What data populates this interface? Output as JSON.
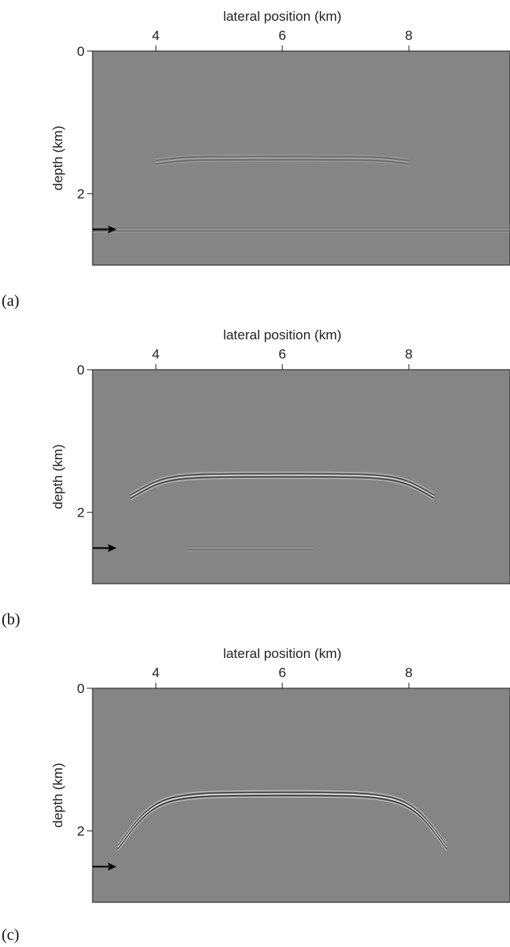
{
  "chart_data": [
    {
      "type": "heatmap",
      "panel_label": "(a)",
      "xlabel": "lateral position (km)",
      "ylabel": "depth (km)",
      "xticks": [
        4,
        6,
        8
      ],
      "yticks": [
        0,
        2
      ],
      "xlim": [
        3,
        9.6
      ],
      "ylim": [
        0,
        3
      ],
      "arrow_depth_km": 2.5,
      "reflectors": [
        {
          "x_start": 4.0,
          "x_end": 8.0,
          "depth": 1.5,
          "curvature": 0.02,
          "strength": 0.35
        },
        {
          "x_start": 3.0,
          "x_end": 9.6,
          "depth": 2.5,
          "curvature": 0.0,
          "strength": 0.2
        }
      ]
    },
    {
      "type": "heatmap",
      "panel_label": "(b)",
      "xlabel": "lateral position (km)",
      "ylabel": "depth (km)",
      "xticks": [
        4,
        6,
        8
      ],
      "yticks": [
        0,
        2
      ],
      "xlim": [
        3,
        9.6
      ],
      "ylim": [
        0,
        3
      ],
      "arrow_depth_km": 2.5,
      "reflectors": [
        {
          "x_start": 3.6,
          "x_end": 8.4,
          "depth": 1.48,
          "curvature": 0.1,
          "strength": 0.85
        },
        {
          "x_start": 4.5,
          "x_end": 6.5,
          "depth": 2.5,
          "curvature": 0.0,
          "strength": 0.12
        }
      ]
    },
    {
      "type": "heatmap",
      "panel_label": "(c)",
      "xlabel": "lateral position (km)",
      "ylabel": "depth (km)",
      "xticks": [
        4,
        6,
        8
      ],
      "yticks": [
        0,
        2
      ],
      "xlim": [
        3,
        9.6
      ],
      "ylim": [
        0,
        3
      ],
      "arrow_depth_km": 2.5,
      "reflectors": [
        {
          "x_start": 3.4,
          "x_end": 8.6,
          "depth": 1.48,
          "curvature": 0.25,
          "strength": 1.0
        }
      ]
    }
  ]
}
